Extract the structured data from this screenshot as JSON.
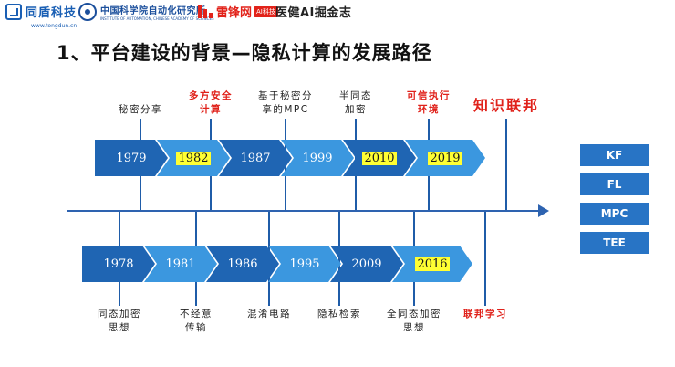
{
  "header": {
    "tongdun": {
      "name": "同盾科技",
      "url": "www.tongdun.cn"
    },
    "cas": {
      "name": "中国科学院自动化研究所",
      "en": "INSTITUTE OF AUTOMATION, CHINESE ACADEMY OF SCIENCES"
    },
    "leifeng": {
      "name": "雷锋网",
      "badge": "AI科技"
    },
    "yijian": {
      "name": "医健AI掘金志"
    }
  },
  "title": "1、平台建设的背景—隐私计算的发展路径",
  "top_timeline": {
    "years": [
      "1979",
      "1982",
      "1987",
      "1999",
      "2010",
      "2019"
    ],
    "highlighted": [
      false,
      true,
      false,
      false,
      true,
      true
    ],
    "labels": [
      {
        "line1": "秘密分享",
        "line2": "",
        "red": false
      },
      {
        "line1": "多方安全",
        "line2": "计算",
        "red": true
      },
      {
        "line1": "基于秘密分",
        "line2": "享的MPC",
        "red": false
      },
      {
        "line1": "半同态",
        "line2": "加密",
        "red": false
      },
      {
        "line1": "可信执行",
        "line2": "环境",
        "red": true
      },
      {
        "line1": "知识联邦",
        "line2": "",
        "red": true
      }
    ]
  },
  "bottom_timeline": {
    "years": [
      "1978",
      "1981",
      "1986",
      "1995",
      "2009",
      "2016"
    ],
    "highlighted": [
      false,
      false,
      false,
      false,
      false,
      true
    ],
    "labels": [
      {
        "line1": "同态加密",
        "line2": "思想",
        "red": false
      },
      {
        "line1": "不经意",
        "line2": "传输",
        "red": false
      },
      {
        "line1": "混淆电路",
        "line2": "",
        "red": false
      },
      {
        "line1": "隐私检索",
        "line2": "",
        "red": false
      },
      {
        "line1": "全同态加密",
        "line2": "思想",
        "red": false
      },
      {
        "line1": "联邦学习",
        "line2": "",
        "red": true
      }
    ]
  },
  "side_boxes": [
    "KF",
    "FL",
    "MPC",
    "TEE"
  ]
}
